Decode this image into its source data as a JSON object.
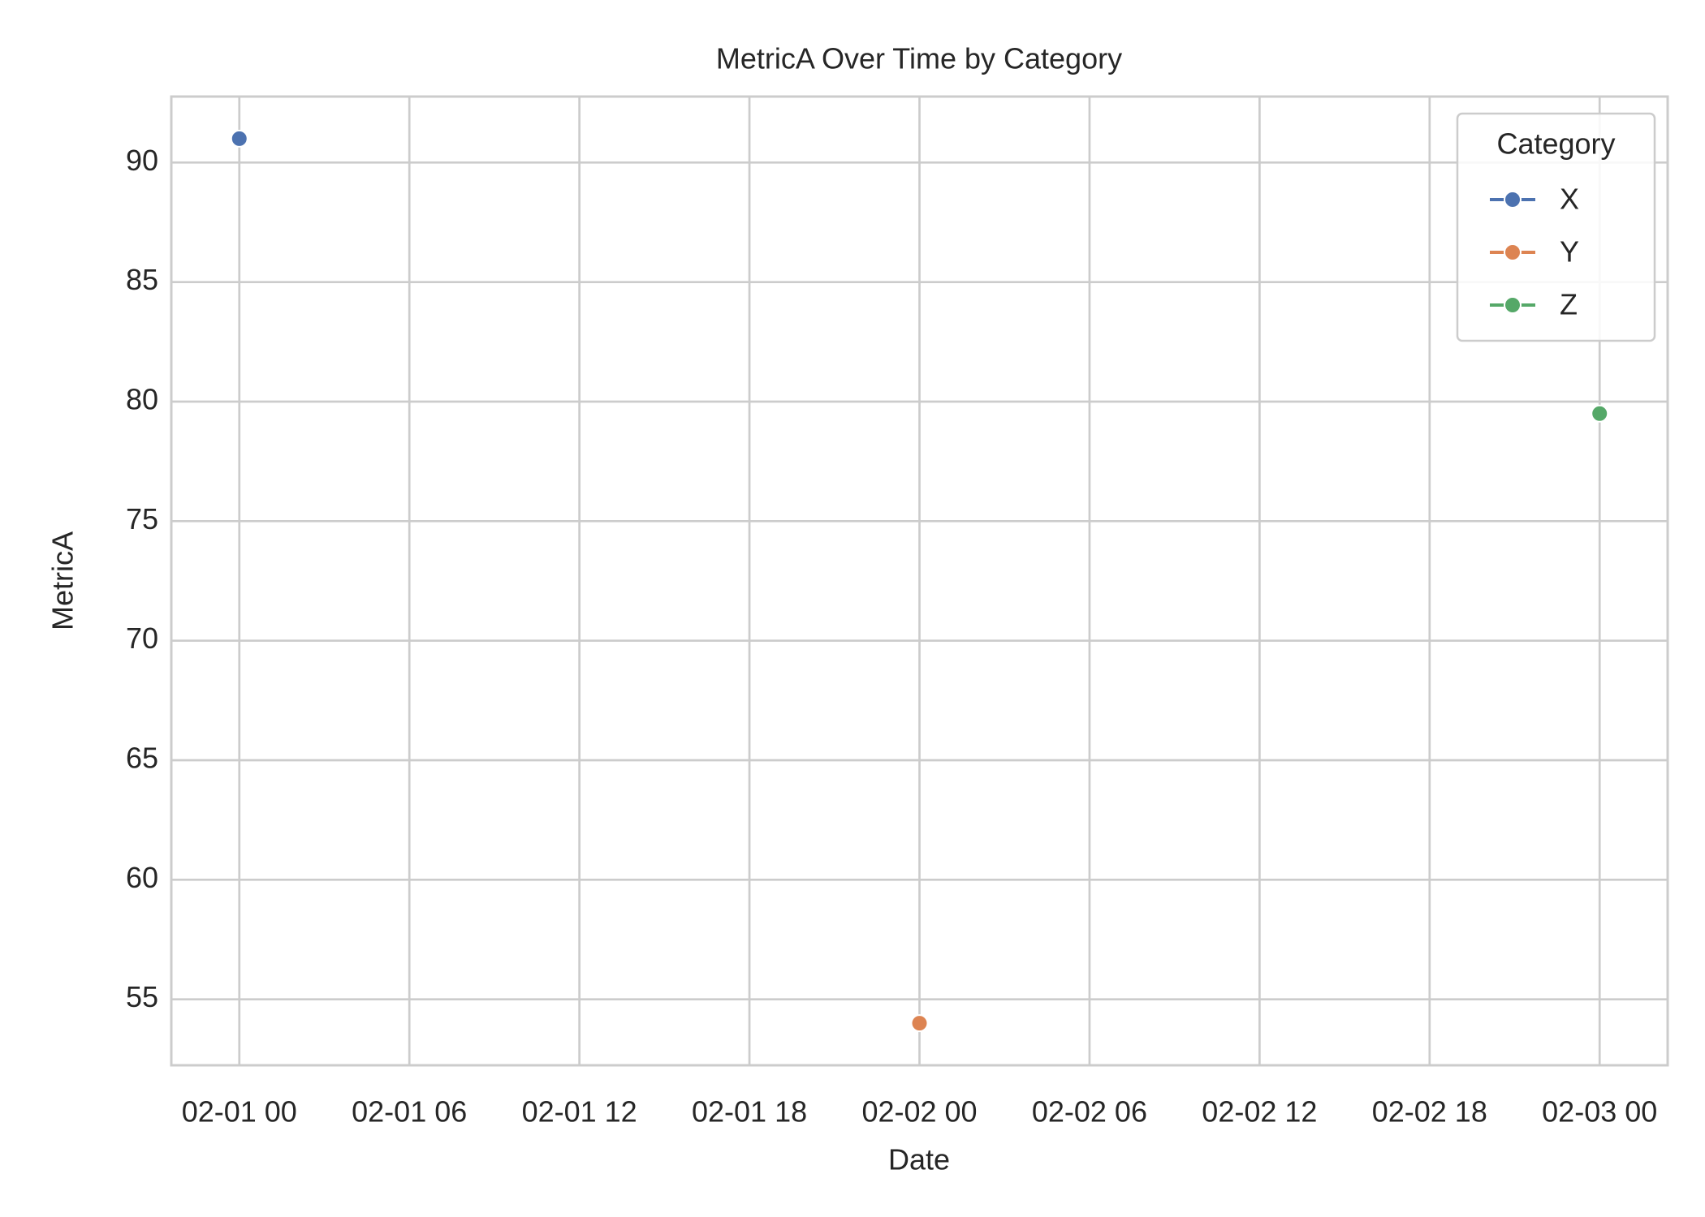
{
  "chart_data": {
    "type": "line",
    "title": "MetricA Over Time by Category",
    "x_label": "Date",
    "y_label": "MetricA",
    "legend_title": "Category",
    "legend_position": "upper right",
    "grid": true,
    "xlim": [
      -2.4,
      50.4
    ],
    "xticks": [
      {
        "value": 0,
        "label": "02-01 00"
      },
      {
        "value": 6,
        "label": "02-01 06"
      },
      {
        "value": 12,
        "label": "02-01 12"
      },
      {
        "value": 18,
        "label": "02-01 18"
      },
      {
        "value": 24,
        "label": "02-02 00"
      },
      {
        "value": 30,
        "label": "02-02 06"
      },
      {
        "value": 36,
        "label": "02-02 12"
      },
      {
        "value": 42,
        "label": "02-02 18"
      },
      {
        "value": 48,
        "label": "02-03 00"
      }
    ],
    "ylim": [
      52.24,
      92.76
    ],
    "yticks": [
      55,
      60,
      65,
      70,
      75,
      80,
      85,
      90
    ],
    "series": [
      {
        "name": "X",
        "color": "#4c72b0",
        "x": [
          0
        ],
        "values": [
          91.0
        ]
      },
      {
        "name": "Y",
        "color": "#dd8452",
        "x": [
          24
        ],
        "values": [
          54.0
        ]
      },
      {
        "name": "Z",
        "color": "#55a868",
        "x": [
          48
        ],
        "values": [
          79.5
        ]
      }
    ]
  }
}
